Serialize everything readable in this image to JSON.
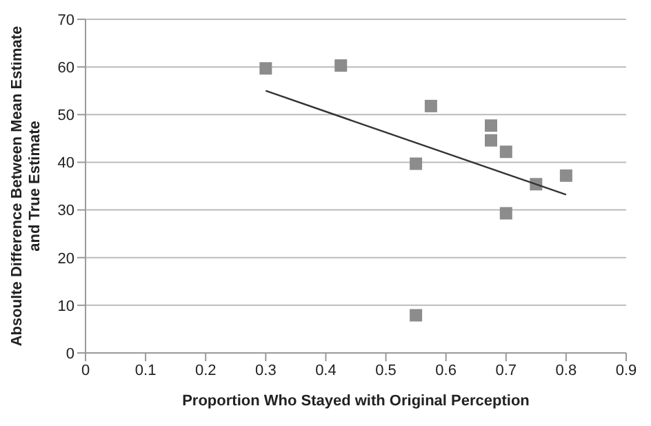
{
  "chart_data": {
    "type": "scatter",
    "xlabel": "Proportion Who Stayed with Original Perception",
    "ylabel": "Absoulte Difference Between Mean Estimate and True Estimate",
    "xlim": [
      0,
      0.9
    ],
    "xticks": [
      0,
      0.1,
      0.2,
      0.3,
      0.4,
      0.5,
      0.6,
      0.7,
      0.8,
      0.9
    ],
    "ylim": [
      0,
      70
    ],
    "yticks": [
      0,
      10,
      20,
      30,
      40,
      50,
      60,
      70
    ],
    "grid": "y",
    "series": [
      {
        "color": "#8c8c8c",
        "marker": "square",
        "x": [
          0.3,
          0.425,
          0.55,
          0.55,
          0.575,
          0.675,
          0.675,
          0.7,
          0.7,
          0.75,
          0.8
        ],
        "values": [
          59.7,
          60.3,
          39.7,
          7.9,
          51.8,
          47.7,
          44.6,
          42.2,
          29.3,
          35.4,
          37.2
        ]
      },
      {
        "type": "line",
        "color": "#333333",
        "marker": "none",
        "x": [
          0.3,
          0.8
        ],
        "values": [
          55,
          33.2
        ]
      }
    ]
  }
}
